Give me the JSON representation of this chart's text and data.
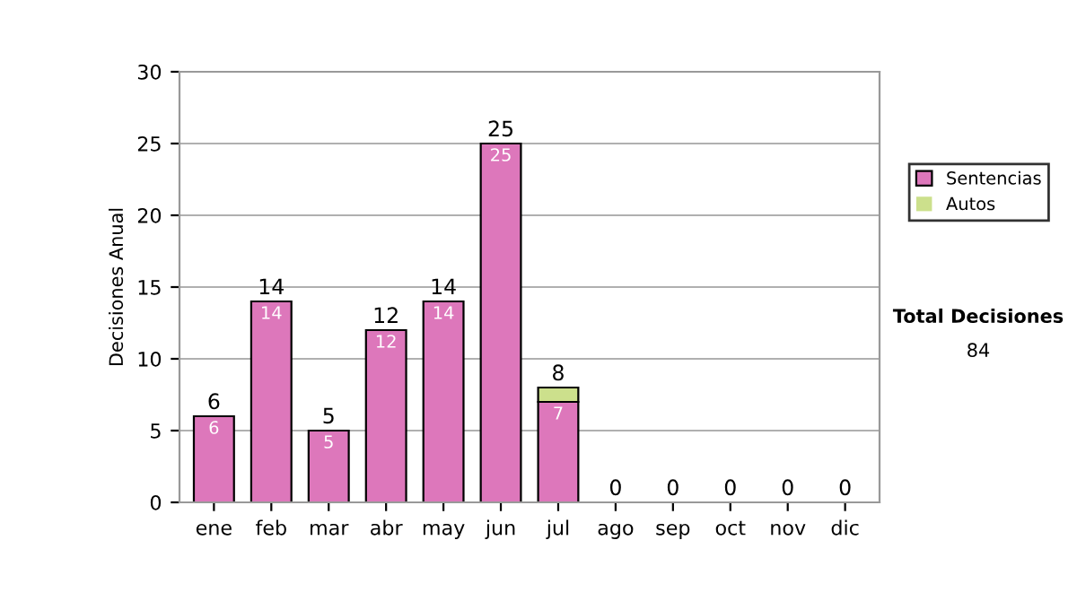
{
  "chart_data": {
    "type": "bar",
    "stacked": true,
    "ylabel": "Decisiones Anual",
    "categories": [
      "ene",
      "feb",
      "mar",
      "abr",
      "may",
      "jun",
      "jul",
      "ago",
      "sep",
      "oct",
      "nov",
      "dic"
    ],
    "series": [
      {
        "name": "Sentencias",
        "color": "#dd77bb",
        "values": [
          6,
          14,
          5,
          12,
          14,
          25,
          7,
          0,
          0,
          0,
          0,
          0
        ],
        "value_labels": [
          "6",
          "14",
          "5",
          "12",
          "14",
          "25",
          "7",
          null,
          null,
          null,
          null,
          null
        ]
      },
      {
        "name": "Autos",
        "color": "#cce08c",
        "values": [
          0,
          0,
          0,
          0,
          0,
          0,
          1,
          0,
          0,
          0,
          0,
          0
        ]
      }
    ],
    "totals": [
      "6",
      "14",
      "5",
      "12",
      "14",
      "25",
      "8",
      "0",
      "0",
      "0",
      "0",
      "0"
    ],
    "ylim": [
      0,
      30
    ],
    "yticks": [
      0,
      5,
      10,
      15,
      20,
      25,
      30
    ],
    "grid": "y",
    "legend": "right",
    "annotations": [
      "Total Decisiones",
      "84"
    ]
  }
}
